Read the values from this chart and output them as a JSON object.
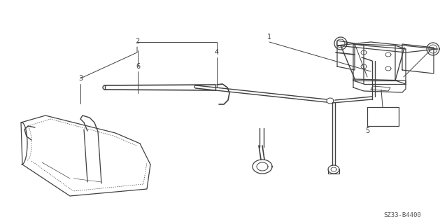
{
  "part_number": "SZ33-B4400",
  "background_color": "#ffffff",
  "line_color": "#404040",
  "label_color": "#404040",
  "fig_width": 6.39,
  "fig_height": 3.2,
  "dpi": 100
}
